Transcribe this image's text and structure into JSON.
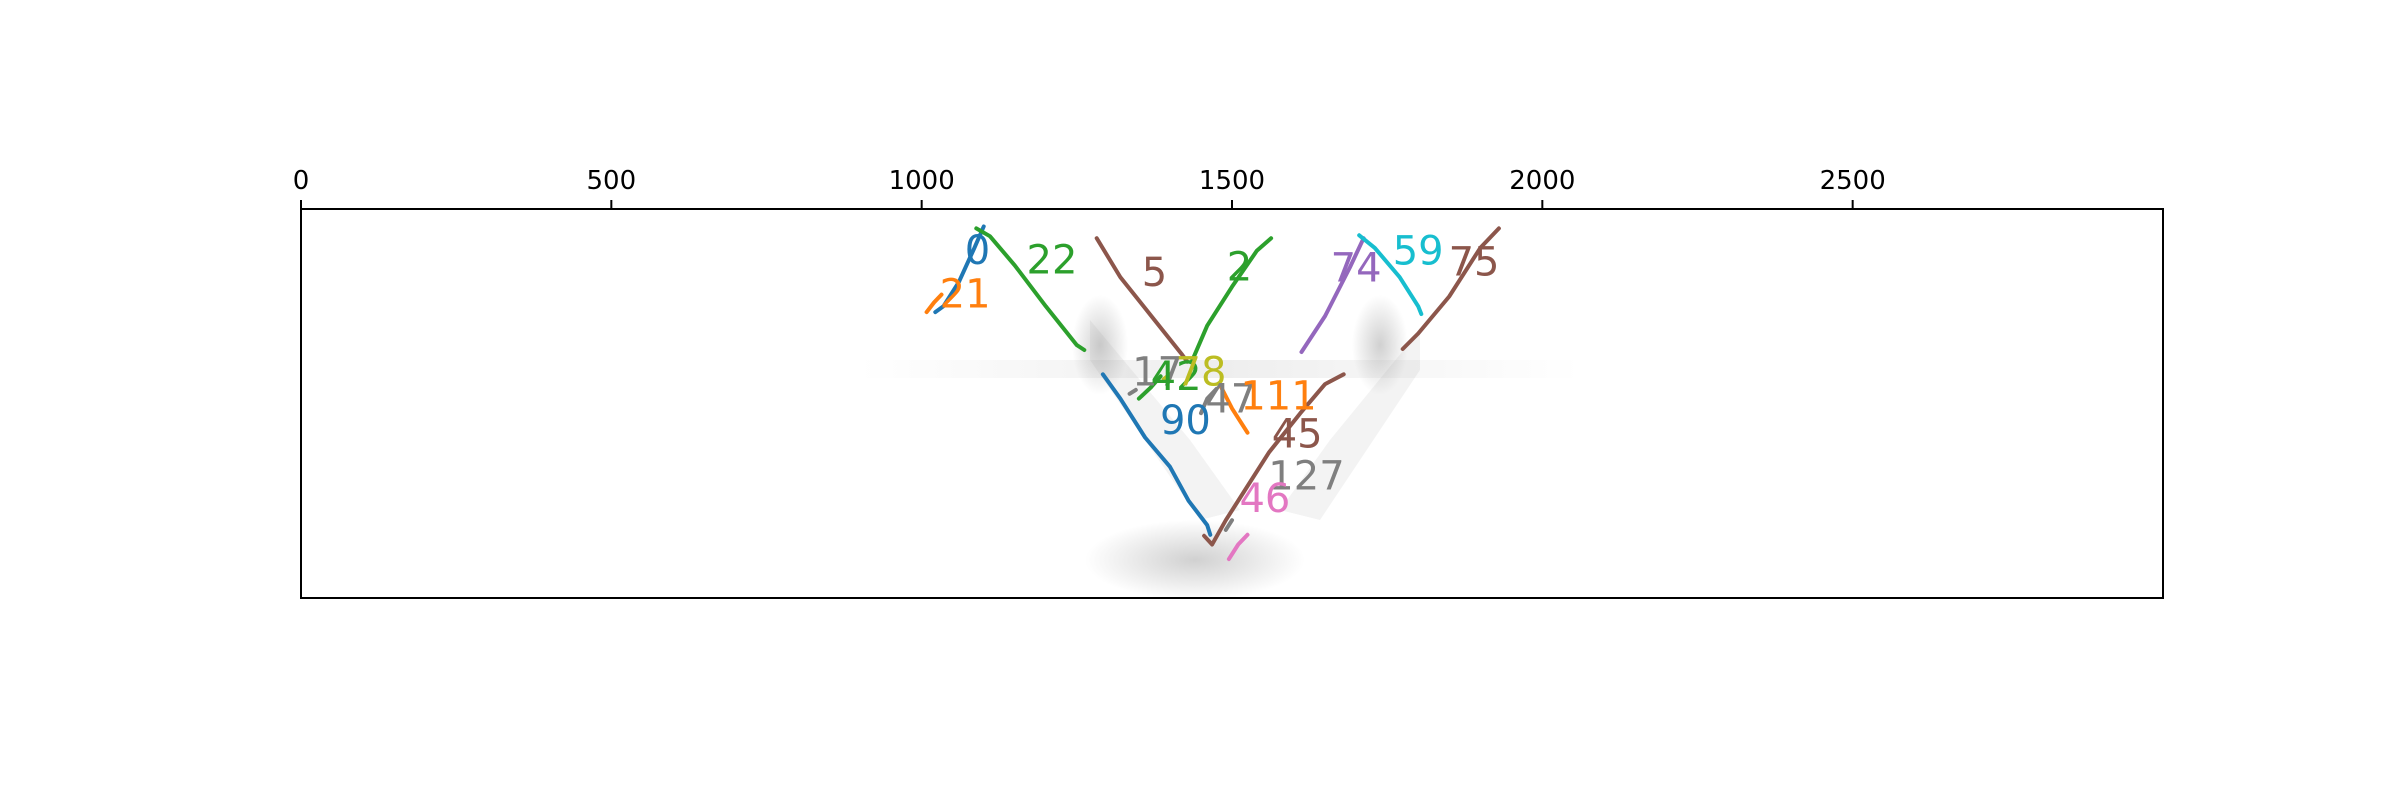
{
  "chart_data": {
    "type": "line",
    "title": "",
    "xlabel": "",
    "ylabel": "",
    "x_axis_position": "top",
    "xlim": [
      0,
      3000
    ],
    "ylim": [
      400,
      0
    ],
    "xticks": [
      0,
      500,
      1000,
      1500,
      2000,
      2500
    ],
    "yticks_visible": false,
    "grid": false,
    "legend": "none",
    "background": "faint grey V-shaped seismic-like image",
    "series": [
      {
        "name": "0",
        "color": "#1f77b4",
        "x": [
          1022,
          1035,
          1060,
          1085,
          1100
        ],
        "y": [
          106,
          100,
          75,
          40,
          18
        ],
        "label_at": [
          1090,
          45
        ]
      },
      {
        "name": "21",
        "color": "#ff7f0e",
        "x": [
          1008,
          1020,
          1032
        ],
        "y": [
          106,
          96,
          88
        ],
        "label_at": [
          1070,
          90
        ]
      },
      {
        "name": "22",
        "color": "#2ca02c",
        "x": [
          1088,
          1110,
          1150,
          1200,
          1250,
          1262
        ],
        "y": [
          20,
          28,
          58,
          100,
          140,
          145
        ],
        "label_at": [
          1210,
          55
        ]
      },
      {
        "name": "5",
        "color": "#8c564b",
        "x": [
          1282,
          1320,
          1370,
          1420,
          1428
        ],
        "y": [
          30,
          70,
          110,
          150,
          157
        ],
        "label_at": [
          1375,
          68
        ]
      },
      {
        "name": "2",
        "color": "#2ca02c",
        "x": [
          1435,
          1460,
          1500,
          1540,
          1563
        ],
        "y": [
          157,
          120,
          80,
          43,
          30
        ],
        "label_at": [
          1512,
          62
        ]
      },
      {
        "name": "74",
        "color": "#9467bd",
        "x": [
          1612,
          1650,
          1690,
          1712
        ],
        "y": [
          147,
          110,
          60,
          30
        ],
        "label_at": [
          1700,
          63
        ]
      },
      {
        "name": "59",
        "color": "#17becf",
        "x": [
          1705,
          1730,
          1770,
          1800,
          1805
        ],
        "y": [
          27,
          40,
          70,
          100,
          108
        ],
        "label_at": [
          1800,
          46
        ]
      },
      {
        "name": "75",
        "color": "#8c564b",
        "x": [
          1775,
          1800,
          1850,
          1900,
          1930
        ],
        "y": [
          144,
          128,
          90,
          40,
          20
        ],
        "label_at": [
          1890,
          57
        ]
      },
      {
        "name": "17",
        "color": "#7f7f7f",
        "x": [
          1335,
          1345
        ],
        "y": [
          190,
          186
        ],
        "label_at": [
          1380,
          170
        ]
      },
      {
        "name": "42",
        "color": "#2ca02c",
        "x": [
          1350,
          1370,
          1385
        ],
        "y": [
          195,
          183,
          172
        ],
        "label_at": [
          1410,
          175
        ]
      },
      {
        "name": "78",
        "color": "#bcbd22",
        "x": [
          1390,
          1400
        ],
        "y": [
          175,
          170
        ],
        "label_at": [
          1450,
          170
        ]
      },
      {
        "name": "47",
        "color": "#7f7f7f",
        "x": [
          1450,
          1460,
          1475
        ],
        "y": [
          210,
          195,
          185
        ],
        "label_at": [
          1498,
          198
        ]
      },
      {
        "name": "111",
        "color": "#ff7f0e",
        "x": [
          1480,
          1500,
          1525
        ],
        "y": [
          180,
          205,
          230
        ],
        "label_at": [
          1575,
          195
        ]
      },
      {
        "name": "90",
        "color": "#1f77b4",
        "x": [
          1292,
          1320,
          1360,
          1400,
          1430,
          1460,
          1465
        ],
        "y": [
          170,
          195,
          235,
          265,
          300,
          325,
          335
        ],
        "label_at": [
          1425,
          220
        ]
      },
      {
        "name": "45",
        "color": "#8c564b",
        "x": [
          1455,
          1468,
          1490,
          1520,
          1560,
          1610,
          1650,
          1680
        ],
        "y": [
          336,
          345,
          320,
          290,
          250,
          210,
          180,
          170
        ],
        "label_at": [
          1605,
          234
        ]
      },
      {
        "name": "127",
        "color": "#7f7f7f",
        "x": [
          1490,
          1500
        ],
        "y": [
          330,
          320
        ],
        "label_at": [
          1620,
          277
        ]
      },
      {
        "name": "46",
        "color": "#e377c2",
        "x": [
          1495,
          1510,
          1525
        ],
        "y": [
          360,
          345,
          335
        ],
        "label_at": [
          1553,
          300
        ]
      }
    ]
  }
}
